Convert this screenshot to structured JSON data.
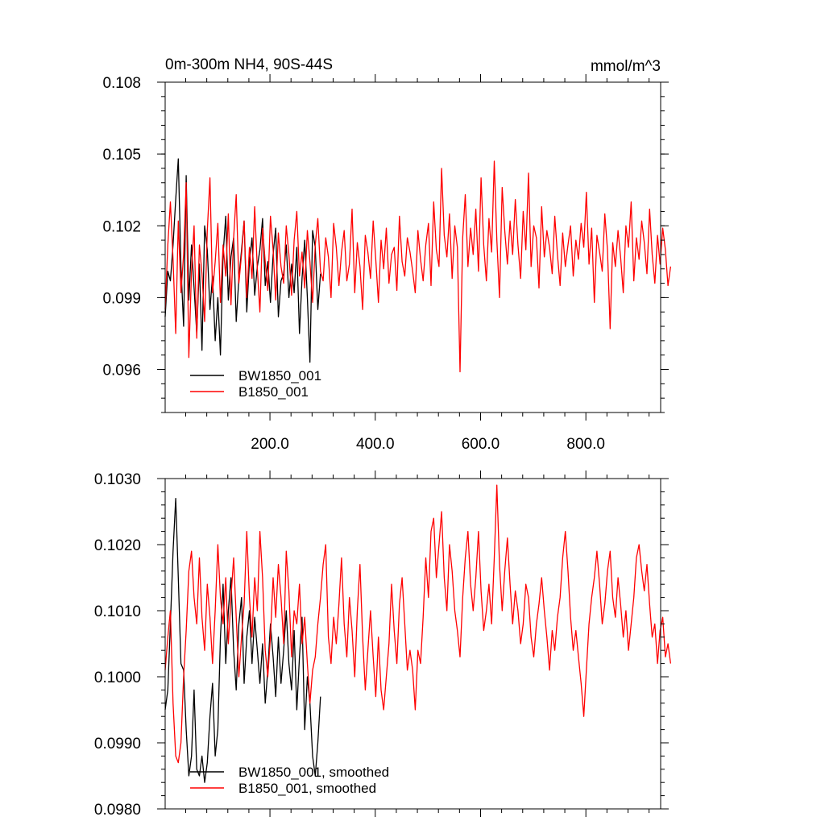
{
  "chart_data": [
    {
      "type": "line",
      "title": "0m-300m NH4, 90S-44S",
      "units": "mmol/m^3",
      "xlim": [
        1,
        942
      ],
      "ylim": [
        0.0942,
        0.108
      ],
      "x_ticks": [
        200,
        400,
        600,
        800
      ],
      "x_tick_labels": [
        "200.0",
        "400.0",
        "600.0",
        "800.0"
      ],
      "y_ticks": [
        0.096,
        0.099,
        0.102,
        0.105,
        0.108
      ],
      "y_tick_labels": [
        "0.096",
        "0.099",
        "0.102",
        "0.105",
        "0.108"
      ],
      "legend_position": "bottom-left",
      "series": [
        {
          "name": "BW1850_001",
          "color": "#000000",
          "x_start": 1,
          "x_step": 5,
          "values": [
            0.0982,
            0.1001,
            0.0997,
            0.1012,
            0.1031,
            0.1048,
            0.1003,
            0.0978,
            0.1041,
            0.0989,
            0.1012,
            0.0994,
            0.0975,
            0.1004,
            0.0968,
            0.102,
            0.101,
            0.0985,
            0.0999,
            0.0972,
            0.099,
            0.0966,
            0.1008,
            0.1024,
            0.0989,
            0.1007,
            0.1015,
            0.098,
            0.0998,
            0.101,
            0.1022,
            0.0984,
            0.1005,
            0.1015,
            0.0991,
            0.1003,
            0.101,
            0.1023,
            0.0995,
            0.1005,
            0.0988,
            0.1008,
            0.1019,
            0.0982,
            0.0997,
            0.1,
            0.1012,
            0.099,
            0.1004,
            0.0992,
            0.1011,
            0.0975,
            0.0998,
            0.1014,
            0.099,
            0.0963,
            0.1018,
            0.1011,
            0.0985,
            0.1
          ]
        },
        {
          "name": "B1850_001",
          "color": "#ff0000",
          "x_start": 1,
          "x_step": 5,
          "values": [
            0.0985,
            0.1012,
            0.103,
            0.1006,
            0.0975,
            0.1022,
            0.0992,
            0.1008,
            0.1038,
            0.0965,
            0.1001,
            0.102,
            0.0973,
            0.1012,
            0.1,
            0.098,
            0.1018,
            0.104,
            0.0992,
            0.1005,
            0.1021,
            0.0988,
            0.1012,
            0.0999,
            0.1025,
            0.0987,
            0.1015,
            0.1033,
            0.0996,
            0.1008,
            0.1022,
            0.099,
            0.1011,
            0.0998,
            0.1028,
            0.1002,
            0.0984,
            0.1019,
            0.1005,
            0.0993,
            0.1024,
            0.101,
            0.0989,
            0.1017,
            0.1003,
            0.0996,
            0.102,
            0.1008,
            0.0991,
            0.1014,
            0.1026,
            0.0999,
            0.1009,
            0.0994,
            0.1018,
            0.1005,
            0.0988,
            0.1012,
            0.1023,
            0.1001,
            0.0997,
            0.1015,
            0.1007,
            0.099,
            0.1021,
            0.1011,
            0.0995,
            0.1009,
            0.1018,
            0.0997,
            0.1004,
            0.1027,
            0.0992,
            0.1013,
            0.1003,
            0.0985,
            0.1016,
            0.1009,
            0.0998,
            0.1022,
            0.1006,
            0.0988,
            0.1014,
            0.1002,
            0.1019,
            0.0996,
            0.1008,
            0.1011,
            0.0993,
            0.1024,
            0.1005,
            0.0999,
            0.1015,
            0.1009,
            0.1001,
            0.0992,
            0.1018,
            0.1006,
            0.0997,
            0.1012,
            0.1021,
            0.0995,
            0.103,
            0.101,
            0.1003,
            0.1044,
            0.1016,
            0.1007,
            0.1025,
            0.0998,
            0.102,
            0.1011,
            0.0959,
            0.1015,
            0.1033,
            0.1003,
            0.1019,
            0.1008,
            0.1027,
            0.1001,
            0.104,
            0.1012,
            0.0997,
            0.1023,
            0.1009,
            0.1047,
            0.1014,
            0.099,
            0.1036,
            0.1018,
            0.1004,
            0.1022,
            0.1008,
            0.1031,
            0.1012,
            0.0998,
            0.1026,
            0.101,
            0.1042,
            0.1003,
            0.102,
            0.1015,
            0.0994,
            0.1028,
            0.1007,
            0.1018,
            0.1011,
            0.1,
            0.1024,
            0.1008,
            0.0995,
            0.1017,
            0.1003,
            0.1012,
            0.102,
            0.0999,
            0.1014,
            0.1006,
            0.1021,
            0.1011,
            0.1034,
            0.1004,
            0.1019,
            0.0988,
            0.1016,
            0.1009,
            0.1001,
            0.1025,
            0.101,
            0.0977,
            0.1013,
            0.1003,
            0.1018,
            0.1007,
            0.0992,
            0.102,
            0.1011,
            0.103,
            0.0997,
            0.1015,
            0.1006,
            0.1022,
            0.1013,
            0.1,
            0.1027,
            0.1008,
            0.0996,
            0.1016,
            0.1004,
            0.1019,
            0.101,
            0.0995,
            0.1003
          ]
        }
      ]
    },
    {
      "type": "line",
      "xlim": [
        1,
        942
      ],
      "ylim": [
        0.098,
        0.103
      ],
      "y_ticks": [
        0.098,
        0.099,
        0.1,
        0.101,
        0.102,
        0.103
      ],
      "y_tick_labels": [
        "0.0980",
        "0.0990",
        "0.1000",
        "0.1010",
        "0.1020",
        "0.1030"
      ],
      "legend_position": "bottom-left",
      "series": [
        {
          "name": "BW1850_001, smoothed",
          "color": "#000000",
          "x_start": 1,
          "x_step": 5,
          "values": [
            0.0995,
            0.0998,
            0.1008,
            0.1019,
            0.1027,
            0.1015,
            0.1002,
            0.1001,
            0.0992,
            0.0985,
            0.0988,
            0.0998,
            0.0986,
            0.0985,
            0.0988,
            0.0984,
            0.0987,
            0.0994,
            0.0999,
            0.0988,
            0.0992,
            0.1006,
            0.1014,
            0.1002,
            0.101,
            0.1015,
            0.1004,
            0.0998,
            0.1008,
            0.1012,
            0.0999,
            0.1006,
            0.101,
            0.1002,
            0.1009,
            0.1004,
            0.0999,
            0.1005,
            0.0996,
            0.1001,
            0.1008,
            0.1003,
            0.0997,
            0.1006,
            0.0999,
            0.1004,
            0.101,
            0.1002,
            0.0998,
            0.1007,
            0.0995,
            0.1003,
            0.1009,
            0.0992,
            0.1,
            0.0996,
            0.0988,
            0.0985,
            0.099,
            0.0997
          ]
        },
        {
          "name": "B1850_001, smoothed",
          "color": "#ff0000",
          "x_start": 1,
          "x_step": 5,
          "values": [
            0.1001,
            0.1006,
            0.101,
            0.0996,
            0.0988,
            0.0987,
            0.099,
            0.1,
            0.1007,
            0.1016,
            0.1019,
            0.1012,
            0.1008,
            0.1018,
            0.1009,
            0.1004,
            0.1014,
            0.1009,
            0.1002,
            0.101,
            0.102,
            0.1012,
            0.1008,
            0.1015,
            0.1005,
            0.1012,
            0.1018,
            0.1009,
            0.1,
            0.1006,
            0.1011,
            0.1022,
            0.1012,
            0.1006,
            0.1015,
            0.101,
            0.1022,
            0.1015,
            0.1004,
            0.1,
            0.1006,
            0.1015,
            0.1009,
            0.1017,
            0.1012,
            0.1005,
            0.1019,
            0.1013,
            0.1003,
            0.101,
            0.1008,
            0.1014,
            0.1005,
            0.1009,
            0.1002,
            0.0996,
            0.1001,
            0.1003,
            0.1008,
            0.1012,
            0.1017,
            0.102,
            0.1006,
            0.1002,
            0.1009,
            0.1005,
            0.1011,
            0.1018,
            0.1008,
            0.1003,
            0.1012,
            0.1007,
            0.1,
            0.101,
            0.1017,
            0.1006,
            0.0998,
            0.1004,
            0.101,
            0.1003,
            0.0997,
            0.1006,
            0.0998,
            0.0995,
            0.1,
            0.1005,
            0.1014,
            0.1007,
            0.1002,
            0.1011,
            0.1015,
            0.1008,
            0.1001,
            0.1004,
            0.1001,
            0.0995,
            0.1004,
            0.1002,
            0.1009,
            0.1018,
            0.1012,
            0.1022,
            0.1024,
            0.1015,
            0.102,
            0.1025,
            0.1015,
            0.101,
            0.102,
            0.1016,
            0.101,
            0.1007,
            0.1003,
            0.1012,
            0.1018,
            0.1022,
            0.1014,
            0.101,
            0.1015,
            0.1022,
            0.1013,
            0.1007,
            0.101,
            0.1014,
            0.1008,
            0.1018,
            0.1029,
            0.1017,
            0.101,
            0.1016,
            0.1021,
            0.1014,
            0.1008,
            0.1013,
            0.101,
            0.1005,
            0.1008,
            0.1014,
            0.1012,
            0.1006,
            0.1003,
            0.1008,
            0.1011,
            0.1015,
            0.101,
            0.1006,
            0.1001,
            0.1007,
            0.1004,
            0.1009,
            0.1012,
            0.1018,
            0.1022,
            0.1016,
            0.1009,
            0.1004,
            0.1007,
            0.1003,
            0.0999,
            0.0994,
            0.1001,
            0.1008,
            0.1012,
            0.1015,
            0.1019,
            0.1014,
            0.1008,
            0.1011,
            0.1016,
            0.1019,
            0.1012,
            0.1009,
            0.1015,
            0.1011,
            0.1006,
            0.101,
            0.1004,
            0.1008,
            0.1012,
            0.1018,
            0.102,
            0.1016,
            0.1013,
            0.1017,
            0.1011,
            0.1006,
            0.1008,
            0.1002,
            0.1007,
            0.1009,
            0.1003,
            0.1005,
            0.1002
          ]
        }
      ]
    }
  ]
}
